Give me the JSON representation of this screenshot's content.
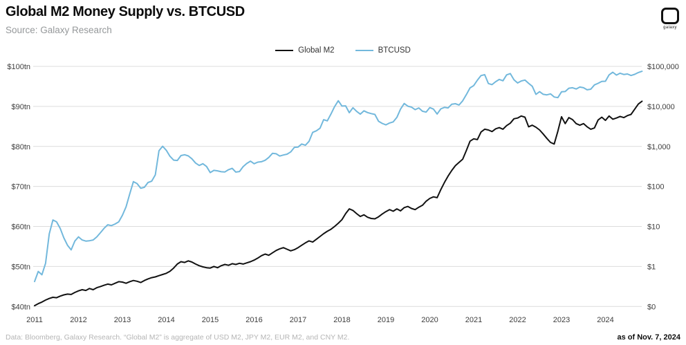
{
  "header": {
    "title": "Global M2 Money Supply vs. BTCUSD",
    "subtitle": "Source: Galaxy Research",
    "logo_text": "galaxy"
  },
  "legend": [
    {
      "label": "Global M2",
      "color": "#111111"
    },
    {
      "label": "BTCUSD",
      "color": "#72b8dc"
    }
  ],
  "footer": {
    "note": "Data: Bloomberg, Galaxy Research. “Global M2” is aggregate of USD M2, JPY M2, EUR M2, and CNY M2.",
    "as_of": "as of Nov. 7, 2024"
  },
  "chart_data": {
    "type": "line",
    "title": "Global M2 Money Supply vs. BTCUSD",
    "grid": "horizontal",
    "legend_position": "top-center",
    "x_axis": {
      "ticks": [
        "2011",
        "2012",
        "2013",
        "2014",
        "2015",
        "2016",
        "2017",
        "2018",
        "2019",
        "2020",
        "2021",
        "2022",
        "2023",
        "2024"
      ],
      "range": [
        2011.0,
        2024.9
      ]
    },
    "left_axis": {
      "scale": "linear",
      "unit": "trillion USD",
      "ticks": [
        "$100tn",
        "$90tn",
        "$80tn",
        "$70tn",
        "$60tn",
        "$50tn",
        "$40tn"
      ],
      "range": [
        40,
        100
      ]
    },
    "right_axis": {
      "scale": "log",
      "unit": "USD",
      "ticks": [
        "$100,000",
        "$10,000",
        "$1,000",
        "$100",
        "$10",
        "$1",
        "$0"
      ],
      "range": [
        0.1,
        100000
      ]
    },
    "series": [
      {
        "id": "global-m2",
        "name": "Global M2",
        "axis": "left",
        "color": "#111111",
        "unit": "$tn",
        "start": 2011.0,
        "step_months": 1,
        "values": [
          40.2,
          40.7,
          41.1,
          41.6,
          42.0,
          42.3,
          42.2,
          42.6,
          42.9,
          43.1,
          43.0,
          43.5,
          43.9,
          44.2,
          44.0,
          44.5,
          44.2,
          44.7,
          45.0,
          45.3,
          45.6,
          45.4,
          45.8,
          46.2,
          46.1,
          45.8,
          46.2,
          46.5,
          46.3,
          46.0,
          46.5,
          46.9,
          47.2,
          47.4,
          47.7,
          48.0,
          48.3,
          48.8,
          49.6,
          50.6,
          51.2,
          51.0,
          51.4,
          51.1,
          50.6,
          50.2,
          49.9,
          49.7,
          49.6,
          50.0,
          49.7,
          50.2,
          50.5,
          50.3,
          50.7,
          50.5,
          50.8,
          50.6,
          50.9,
          51.2,
          51.6,
          52.1,
          52.7,
          53.1,
          52.8,
          53.4,
          54.0,
          54.4,
          54.7,
          54.3,
          53.9,
          54.2,
          54.7,
          55.3,
          55.9,
          56.4,
          56.1,
          56.8,
          57.5,
          58.2,
          58.8,
          59.3,
          60.0,
          60.8,
          61.7,
          63.2,
          64.4,
          64.0,
          63.2,
          62.5,
          62.9,
          62.3,
          62.0,
          61.9,
          62.4,
          63.1,
          63.7,
          64.2,
          63.8,
          64.4,
          63.9,
          64.7,
          65.0,
          64.5,
          64.2,
          64.8,
          65.3,
          66.3,
          67.0,
          67.4,
          67.2,
          69.2,
          71.0,
          72.6,
          74.0,
          75.2,
          76.0,
          76.8,
          79.0,
          81.3,
          81.9,
          81.7,
          83.6,
          84.3,
          84.1,
          83.7,
          84.4,
          84.7,
          84.3,
          85.2,
          85.8,
          86.9,
          87.1,
          87.6,
          87.3,
          84.9,
          85.3,
          84.8,
          84.1,
          83.1,
          82.0,
          81.0,
          80.6,
          83.8,
          87.4,
          85.7,
          87.2,
          86.7,
          85.7,
          85.3,
          85.7,
          84.9,
          84.3,
          84.6,
          86.6,
          87.3,
          86.5,
          87.6,
          86.8,
          87.1,
          87.5,
          87.2,
          87.7,
          88.0,
          89.3,
          90.6,
          91.3
        ]
      },
      {
        "id": "btcusd",
        "name": "BTCUSD",
        "axis": "right",
        "color": "#72b8dc",
        "unit": "$",
        "start": 2011.0,
        "step_months": 1,
        "values": [
          0.42,
          0.75,
          0.62,
          1.2,
          6.5,
          14.5,
          13.0,
          9.0,
          5.2,
          3.4,
          2.6,
          4.3,
          5.5,
          4.6,
          4.3,
          4.4,
          4.6,
          5.5,
          7.0,
          9.0,
          11.0,
          10.5,
          11.5,
          13.0,
          19,
          31,
          65,
          132,
          118,
          90,
          95,
          125,
          135,
          195,
          780,
          1010,
          800,
          565,
          455,
          445,
          590,
          620,
          580,
          490,
          385,
          335,
          370,
          315,
          222,
          252,
          245,
          233,
          230,
          262,
          283,
          228,
          236,
          312,
          375,
          428,
          370,
          405,
          415,
          450,
          530,
          670,
          655,
          575,
          610,
          640,
          730,
          950,
          965,
          1150,
          1070,
          1340,
          2250,
          2450,
          2850,
          4650,
          4350,
          6450,
          9900,
          13850,
          10200,
          10300,
          6950,
          9250,
          7500,
          6400,
          7750,
          7000,
          6600,
          6300,
          4250,
          3750,
          3450,
          3850,
          4100,
          5300,
          8550,
          11800,
          10100,
          9600,
          8300,
          9150,
          7550,
          7200,
          9350,
          8550,
          6450,
          8650,
          9450,
          9150,
          11350,
          11650,
          10800,
          13800,
          19700,
          29000,
          33100,
          45200,
          58800,
          62000,
          37300,
          35000,
          41500,
          47150,
          43800,
          61300,
          66000,
          46200,
          38500,
          43200,
          45500,
          37700,
          31800,
          19950,
          23300,
          20050,
          19400,
          20500,
          17150,
          16550,
          23150,
          23500,
          28500,
          29250,
          27200,
          30450,
          29250,
          26000,
          26950,
          34500,
          37700,
          42250,
          42600,
          61200,
          71300,
          60600,
          67500,
          62700,
          64600,
          59100,
          63300,
          70200,
          75500
        ]
      }
    ]
  }
}
